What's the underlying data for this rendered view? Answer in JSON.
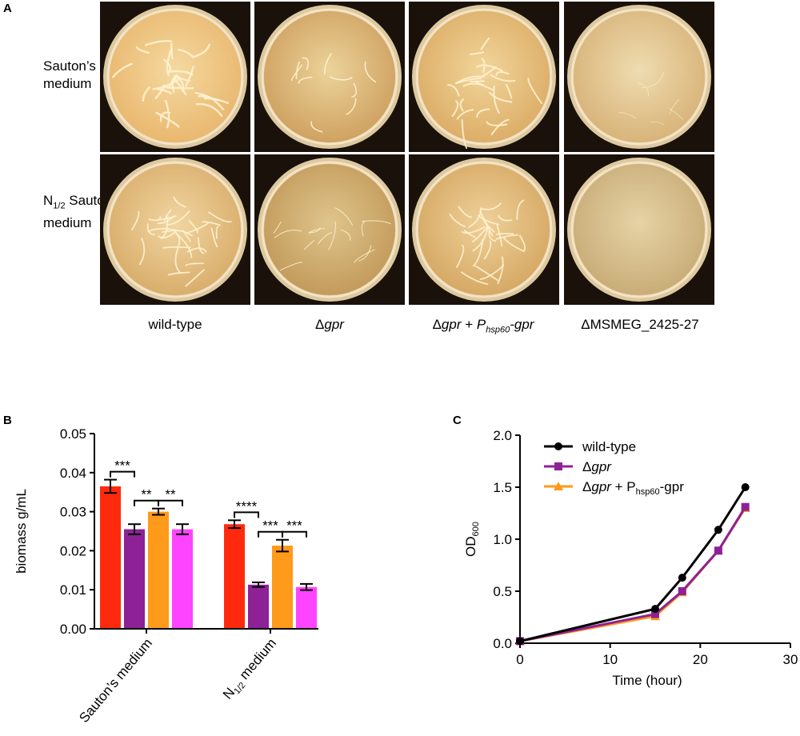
{
  "panel_a": {
    "letter": "A",
    "row_labels": [
      {
        "line1": "Sauton’s",
        "line2": "medium"
      },
      {
        "prefix": "N",
        "sub": "1/2",
        "suffix": " Sauton’s",
        "line2": "medium"
      }
    ],
    "col_labels": [
      {
        "text": "wild-type"
      },
      {
        "delta": "Δ",
        "italic": "gpr"
      },
      {
        "delta": "Δ",
        "italic": "gpr",
        "mid": " + ",
        "p": "P",
        "psub": "hsp60",
        "tail": "-gpr"
      },
      {
        "text": "ΔMSMEG_2425-27"
      }
    ]
  },
  "chart_data": [
    {
      "type": "bar",
      "panel": "B",
      "ylabel": "biomass g/mL",
      "ylim": [
        0,
        0.05
      ],
      "yticks": [
        "0.00",
        "0.01",
        "0.02",
        "0.03",
        "0.04",
        "0.05"
      ],
      "groups": [
        {
          "label": "Sauton’s medium",
          "values": [
            0.0365,
            0.0255,
            0.03,
            0.0255
          ],
          "errors": [
            0.0017,
            0.0013,
            0.0008,
            0.0013
          ]
        },
        {
          "label_prefix": "N",
          "label_sub": "1/2",
          "label_suffix": " medium",
          "values": [
            0.0268,
            0.0113,
            0.0213,
            0.0107
          ],
          "errors": [
            0.001,
            0.0006,
            0.0015,
            0.0008
          ]
        }
      ],
      "colors": [
        "#ff2a0d",
        "#8e2196",
        "#ff9a1a",
        "#ff44ff"
      ],
      "significance": [
        {
          "group": 0,
          "from": 0,
          "to": 1,
          "label": "***"
        },
        {
          "group": 0,
          "from": 1,
          "to": 2,
          "label": "**"
        },
        {
          "group": 0,
          "from": 2,
          "to": 3,
          "label": "**"
        },
        {
          "group": 1,
          "from": 0,
          "to": 1,
          "label": "****"
        },
        {
          "group": 1,
          "from": 1,
          "to": 2,
          "label": "***"
        },
        {
          "group": 1,
          "from": 2,
          "to": 3,
          "label": "***"
        }
      ]
    },
    {
      "type": "line",
      "panel": "C",
      "xlabel": "Time (hour)",
      "ylabel_base": "OD",
      "ylabel_sub": "600",
      "xlim": [
        0,
        30
      ],
      "ylim": [
        0,
        2.0
      ],
      "xticks": [
        "0",
        "10",
        "20",
        "30"
      ],
      "yticks": [
        "0.0",
        "0.5",
        "1.0",
        "1.5",
        "2.0"
      ],
      "x": [
        0,
        15,
        18,
        22,
        25
      ],
      "series": [
        {
          "values": [
            0.02,
            0.33,
            0.63,
            1.09,
            1.5
          ],
          "color": "#000000",
          "marker": "circle",
          "legend_text": "wild-type"
        },
        {
          "values": [
            0.02,
            0.28,
            0.5,
            0.89,
            1.31
          ],
          "color": "#8e2196",
          "marker": "square",
          "legend_delta": "Δ",
          "legend_italic": "gpr"
        },
        {
          "values": [
            0.02,
            0.26,
            0.49,
            0.89,
            1.3
          ],
          "color": "#ff9a1a",
          "marker": "triangle",
          "legend_delta": "Δ",
          "legend_italic": "gpr",
          "legend_mid": " + P",
          "legend_sub": "hsp60",
          "legend_tail": "-gpr"
        }
      ]
    }
  ]
}
